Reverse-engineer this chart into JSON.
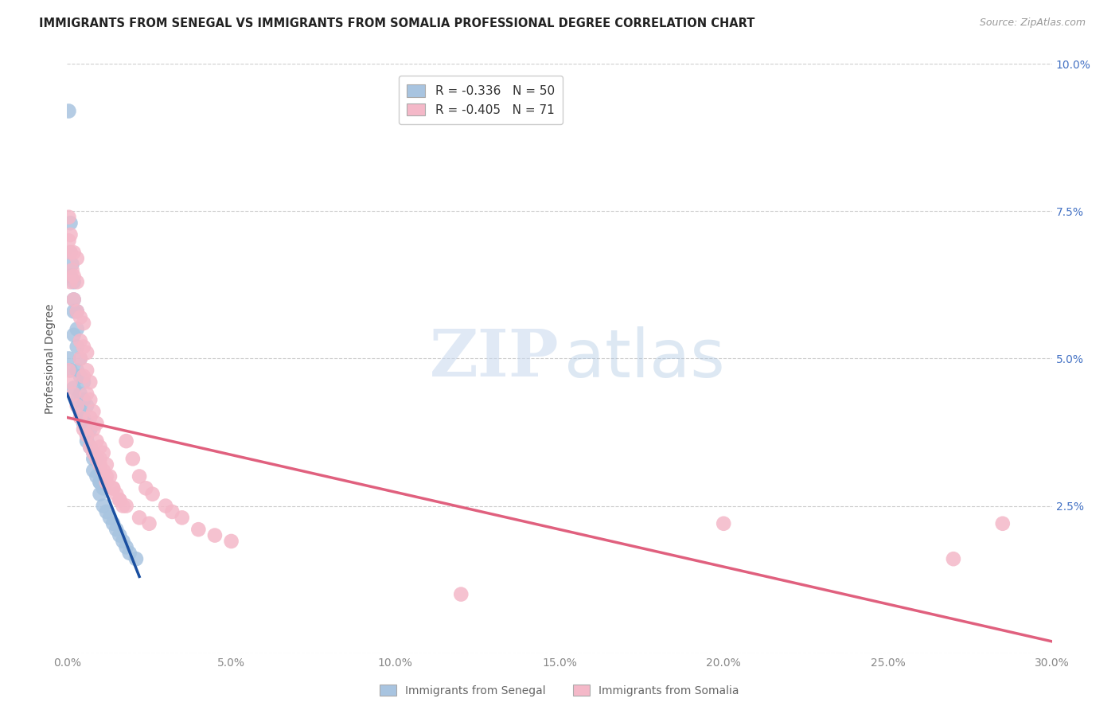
{
  "title": "IMMIGRANTS FROM SENEGAL VS IMMIGRANTS FROM SOMALIA PROFESSIONAL DEGREE CORRELATION CHART",
  "source": "Source: ZipAtlas.com",
  "ylabel": "Professional Degree",
  "xlabel_senegal": "Immigrants from Senegal",
  "xlabel_somalia": "Immigrants from Somalia",
  "xlim": [
    0.0,
    0.3
  ],
  "ylim": [
    0.0,
    0.1
  ],
  "xticks": [
    0.0,
    0.05,
    0.1,
    0.15,
    0.2,
    0.25,
    0.3
  ],
  "xtick_labels": [
    "0.0%",
    "5.0%",
    "10.0%",
    "15.0%",
    "20.0%",
    "25.0%",
    "30.0%"
  ],
  "yticks": [
    0.0,
    0.025,
    0.05,
    0.075,
    0.1
  ],
  "ytick_labels": [
    "",
    "2.5%",
    "5.0%",
    "7.5%",
    "10.0%"
  ],
  "senegal_color": "#a8c4e0",
  "somalia_color": "#f4b8c8",
  "senegal_line_color": "#1a4fa0",
  "somalia_line_color": "#e0607e",
  "legend_r_senegal": "-0.336",
  "legend_n_senegal": "50",
  "legend_r_somalia": "-0.405",
  "legend_n_somalia": "71",
  "right_tick_color": "#4472c4",
  "grid_color": "#cccccc",
  "background_color": "#ffffff",
  "senegal_x": [
    0.0005,
    0.001,
    0.001,
    0.001,
    0.0015,
    0.002,
    0.002,
    0.002,
    0.002,
    0.003,
    0.003,
    0.003,
    0.003,
    0.004,
    0.004,
    0.004,
    0.005,
    0.005,
    0.005,
    0.006,
    0.006,
    0.006,
    0.007,
    0.007,
    0.008,
    0.008,
    0.009,
    0.009,
    0.01,
    0.01,
    0.011,
    0.011,
    0.012,
    0.013,
    0.014,
    0.015,
    0.016,
    0.017,
    0.018,
    0.019,
    0.0005,
    0.001,
    0.002,
    0.003,
    0.004,
    0.005,
    0.006,
    0.008,
    0.01,
    0.021
  ],
  "senegal_y": [
    0.092,
    0.073,
    0.068,
    0.064,
    0.066,
    0.063,
    0.06,
    0.058,
    0.054,
    0.058,
    0.055,
    0.052,
    0.048,
    0.05,
    0.047,
    0.044,
    0.046,
    0.043,
    0.04,
    0.042,
    0.039,
    0.036,
    0.038,
    0.035,
    0.034,
    0.031,
    0.033,
    0.03,
    0.029,
    0.027,
    0.028,
    0.025,
    0.024,
    0.023,
    0.022,
    0.021,
    0.02,
    0.019,
    0.018,
    0.017,
    0.05,
    0.048,
    0.045,
    0.043,
    0.041,
    0.039,
    0.037,
    0.033,
    0.029,
    0.016
  ],
  "somalia_x": [
    0.0005,
    0.0005,
    0.001,
    0.001,
    0.001,
    0.0015,
    0.002,
    0.002,
    0.002,
    0.003,
    0.003,
    0.003,
    0.004,
    0.004,
    0.004,
    0.005,
    0.005,
    0.005,
    0.006,
    0.006,
    0.006,
    0.007,
    0.007,
    0.007,
    0.008,
    0.008,
    0.009,
    0.009,
    0.01,
    0.01,
    0.011,
    0.011,
    0.012,
    0.012,
    0.013,
    0.014,
    0.015,
    0.016,
    0.017,
    0.018,
    0.02,
    0.022,
    0.024,
    0.026,
    0.03,
    0.032,
    0.035,
    0.04,
    0.045,
    0.05,
    0.0005,
    0.001,
    0.002,
    0.003,
    0.004,
    0.005,
    0.006,
    0.007,
    0.008,
    0.009,
    0.01,
    0.012,
    0.014,
    0.016,
    0.018,
    0.022,
    0.025,
    0.12,
    0.2,
    0.27,
    0.285
  ],
  "somalia_y": [
    0.074,
    0.07,
    0.071,
    0.068,
    0.063,
    0.065,
    0.068,
    0.064,
    0.06,
    0.067,
    0.063,
    0.058,
    0.057,
    0.053,
    0.05,
    0.056,
    0.052,
    0.047,
    0.051,
    0.048,
    0.044,
    0.046,
    0.043,
    0.04,
    0.041,
    0.038,
    0.039,
    0.036,
    0.035,
    0.033,
    0.034,
    0.031,
    0.032,
    0.029,
    0.03,
    0.028,
    0.027,
    0.026,
    0.025,
    0.036,
    0.033,
    0.03,
    0.028,
    0.027,
    0.025,
    0.024,
    0.023,
    0.021,
    0.02,
    0.019,
    0.048,
    0.046,
    0.044,
    0.042,
    0.04,
    0.038,
    0.037,
    0.035,
    0.034,
    0.033,
    0.032,
    0.03,
    0.028,
    0.026,
    0.025,
    0.023,
    0.022,
    0.01,
    0.022,
    0.016,
    0.022
  ],
  "senegal_line_x": [
    0.0,
    0.022
  ],
  "senegal_line_y": [
    0.044,
    0.013
  ],
  "somalia_line_x": [
    0.0,
    0.3
  ],
  "somalia_line_y": [
    0.04,
    0.002
  ]
}
